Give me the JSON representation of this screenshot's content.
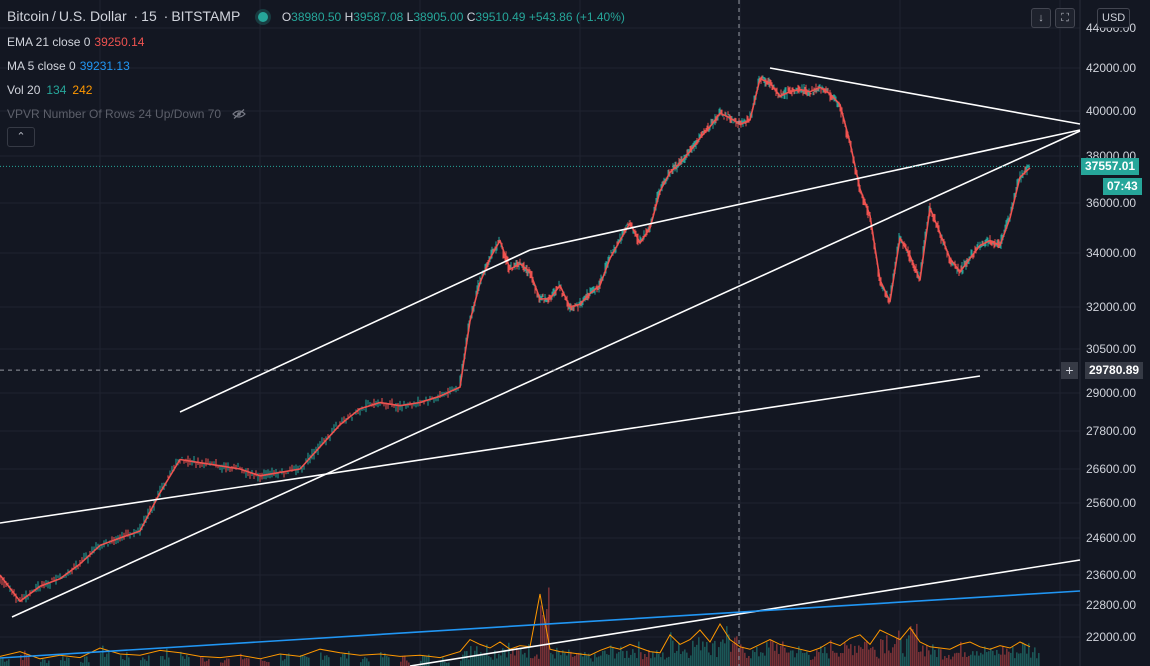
{
  "header": {
    "symbol": "Bitcoin",
    "quote": "U.S. Dollar",
    "interval": "15",
    "exchange": "BITSTAMP",
    "open": "38980.50",
    "high": "39587.08",
    "low": "38905.00",
    "close": "39510.49",
    "change": "+543.86 (+1.40%)",
    "o_label": "O",
    "h_label": "H",
    "l_label": "L",
    "c_label": "C"
  },
  "indicators": {
    "ema_label": "EMA 21 close 0",
    "ema_value": "39250.14",
    "ma_label": "MA 5 close 0",
    "ma_value": "39231.13",
    "vol_label": "Vol 20",
    "vol_value_1": "134",
    "vol_value_2": "242",
    "vpvr_label": "VPVR Number Of Rows 24 Up/Down 70"
  },
  "toolbar": {
    "collapse_glyph": "⌃",
    "down_glyph": "↓",
    "expand_glyph": "⛶",
    "currency": "USD"
  },
  "price_scale": {
    "labels": [
      "44000.00",
      "42000.00",
      "40000.00",
      "38000.00",
      "36000.00",
      "34000.00",
      "32000.00",
      "30500.00",
      "29000.00",
      "27800.00",
      "26600.00",
      "25600.00",
      "24600.00",
      "23600.00",
      "22800.00",
      "22000.00"
    ],
    "last_price": "37557.01",
    "countdown": "07:43",
    "crosshair_price": "29780.89"
  },
  "colors": {
    "background": "#131722",
    "up": "#26a69a",
    "down": "#ef5350",
    "ema": "#ef5350",
    "ma": "#2196f3",
    "trendline": "#ffffff",
    "volume_ma": "#ff9800"
  },
  "chart_data": {
    "type": "line",
    "title": "Bitcoin / U.S. Dollar · 15 · BITSTAMP",
    "scale": "log",
    "ylim": [
      21600,
      44300
    ],
    "x": [
      0,
      20,
      40,
      60,
      80,
      100,
      120,
      140,
      160,
      180,
      200,
      220,
      240,
      260,
      280,
      300,
      320,
      340,
      360,
      380,
      400,
      420,
      440,
      460,
      470,
      480,
      490,
      500,
      510,
      520,
      530,
      540,
      550,
      560,
      570,
      580,
      590,
      600,
      610,
      620,
      630,
      640,
      650,
      660,
      670,
      680,
      690,
      700,
      710,
      720,
      730,
      740,
      750,
      760,
      770,
      780,
      790,
      800,
      810,
      820,
      830,
      840,
      850,
      860,
      870,
      880,
      890,
      900,
      910,
      920,
      930,
      940,
      950,
      960,
      970,
      980,
      990,
      1000,
      1010,
      1020,
      1030
    ],
    "price": [
      23600,
      22900,
      23300,
      23500,
      23900,
      24400,
      24600,
      24800,
      25900,
      26900,
      26800,
      26700,
      26600,
      26400,
      26500,
      26600,
      27300,
      28000,
      28500,
      28700,
      28600,
      28700,
      28900,
      29200,
      31500,
      32900,
      33800,
      34500,
      33400,
      33600,
      33300,
      32300,
      32300,
      32800,
      32000,
      32100,
      32500,
      32800,
      33800,
      34500,
      35200,
      34400,
      35000,
      36500,
      37300,
      37700,
      38200,
      38800,
      39300,
      39900,
      39700,
      39400,
      39600,
      41500,
      41300,
      40700,
      40900,
      41000,
      40900,
      41100,
      40800,
      40300,
      38600,
      36600,
      35500,
      33000,
      32200,
      34600,
      33900,
      33000,
      35800,
      34800,
      33800,
      33300,
      33800,
      34300,
      34500,
      34300,
      35400,
      37100,
      37500
    ],
    "ema_value": 39250.14,
    "ma_value": 39231.13,
    "volume": [
      80,
      120,
      60,
      90,
      70,
      150,
      100,
      90,
      130,
      110,
      80,
      70,
      90,
      60,
      100,
      80,
      140,
      110,
      90,
      100,
      80,
      90,
      70,
      120,
      220,
      180,
      150,
      200,
      140,
      170,
      160,
      600,
      140,
      120,
      110,
      100,
      90,
      130,
      160,
      140,
      180,
      150,
      120,
      110,
      260,
      180,
      220,
      300,
      200,
      350,
      220,
      160,
      140,
      180,
      220,
      180,
      160,
      140,
      120,
      150,
      200,
      170,
      230,
      260,
      180,
      300,
      260,
      220,
      320,
      200,
      160,
      150,
      140,
      180,
      200,
      160,
      140,
      170,
      150,
      200,
      160
    ],
    "current_price": 37557.01,
    "crosshair_price": 29780.89
  }
}
